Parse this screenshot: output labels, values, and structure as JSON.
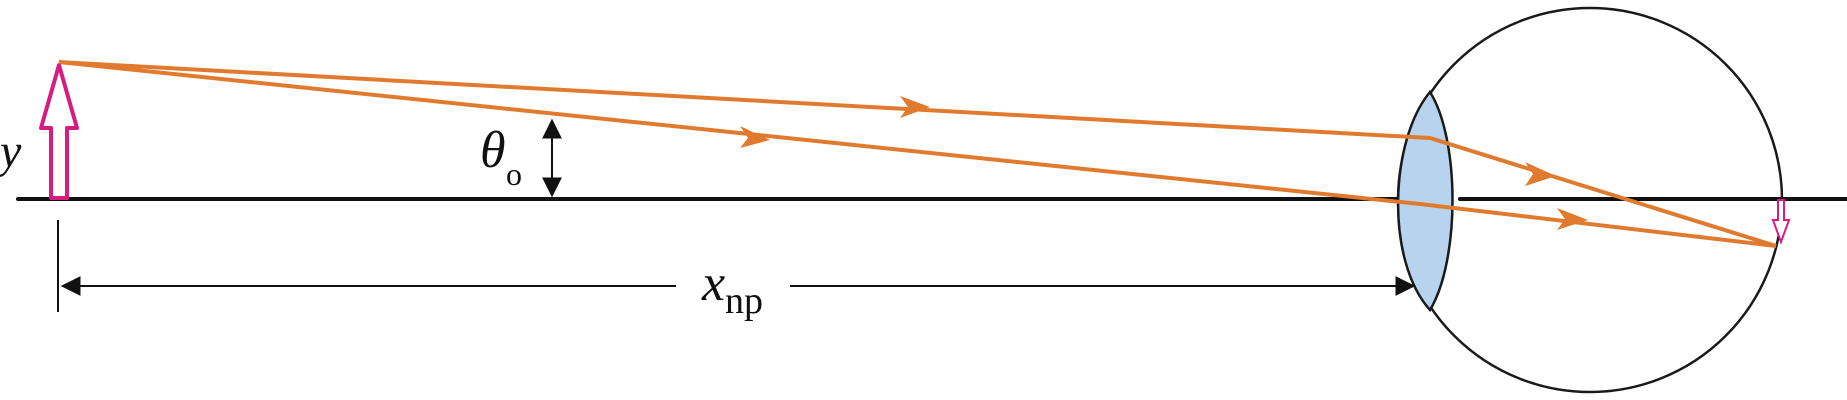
{
  "labels": {
    "object_height": "y",
    "angle_symbol": "θ",
    "angle_subscript": "o",
    "distance_symbol": "x",
    "distance_subscript": "np"
  },
  "colors": {
    "ray": "#e07a2e",
    "object": "#d81b7f",
    "lens_fill": "#b7d3ee",
    "line": "#111111",
    "eye_outline": "#1a1a1a",
    "background": "#ffffff"
  }
}
